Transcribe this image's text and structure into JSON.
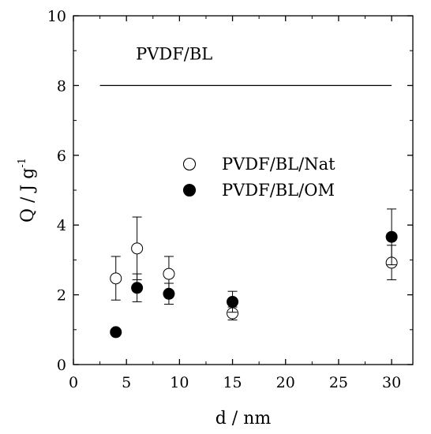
{
  "chart_data": {
    "type": "scatter",
    "xlabel": "d / nm",
    "ylabel": "Q / J g",
    "ylabel_superscript": "-1",
    "xlim": [
      0,
      32
    ],
    "ylim": [
      0,
      10
    ],
    "x_ticks": [
      "0",
      "5",
      "10",
      "15",
      "20",
      "25",
      "30"
    ],
    "y_ticks": [
      "0",
      "2",
      "4",
      "6",
      "8",
      "10"
    ],
    "reference_line": {
      "label": "PVDF/BL",
      "y": 8.0,
      "x_start": 2.5,
      "x_end": 30
    },
    "legend_position": "center",
    "series": [
      {
        "name": "PVDF/BL/Nat",
        "marker": "open-circle",
        "points": [
          {
            "x": 4,
            "y": 2.47,
            "err_low": 1.85,
            "err_high": 3.1
          },
          {
            "x": 6,
            "y": 3.33,
            "err_low": 2.43,
            "err_high": 4.23
          },
          {
            "x": 9,
            "y": 2.6,
            "err_low": 2.1,
            "err_high": 3.1
          },
          {
            "x": 15,
            "y": 1.47,
            "err_low": 1.28,
            "err_high": 1.65
          },
          {
            "x": 30,
            "y": 2.92,
            "err_low": 2.43,
            "err_high": 3.42
          }
        ]
      },
      {
        "name": "PVDF/BL/OM",
        "marker": "filled-circle",
        "points": [
          {
            "x": 4,
            "y": 0.93,
            "err_low": 0.85,
            "err_high": 1.01
          },
          {
            "x": 6,
            "y": 2.2,
            "err_low": 1.8,
            "err_high": 2.6
          },
          {
            "x": 9,
            "y": 2.03,
            "err_low": 1.73,
            "err_high": 2.33
          },
          {
            "x": 15,
            "y": 1.8,
            "err_low": 1.5,
            "err_high": 2.1
          },
          {
            "x": 30,
            "y": 3.66,
            "err_low": 2.86,
            "err_high": 4.46
          }
        ]
      }
    ]
  }
}
